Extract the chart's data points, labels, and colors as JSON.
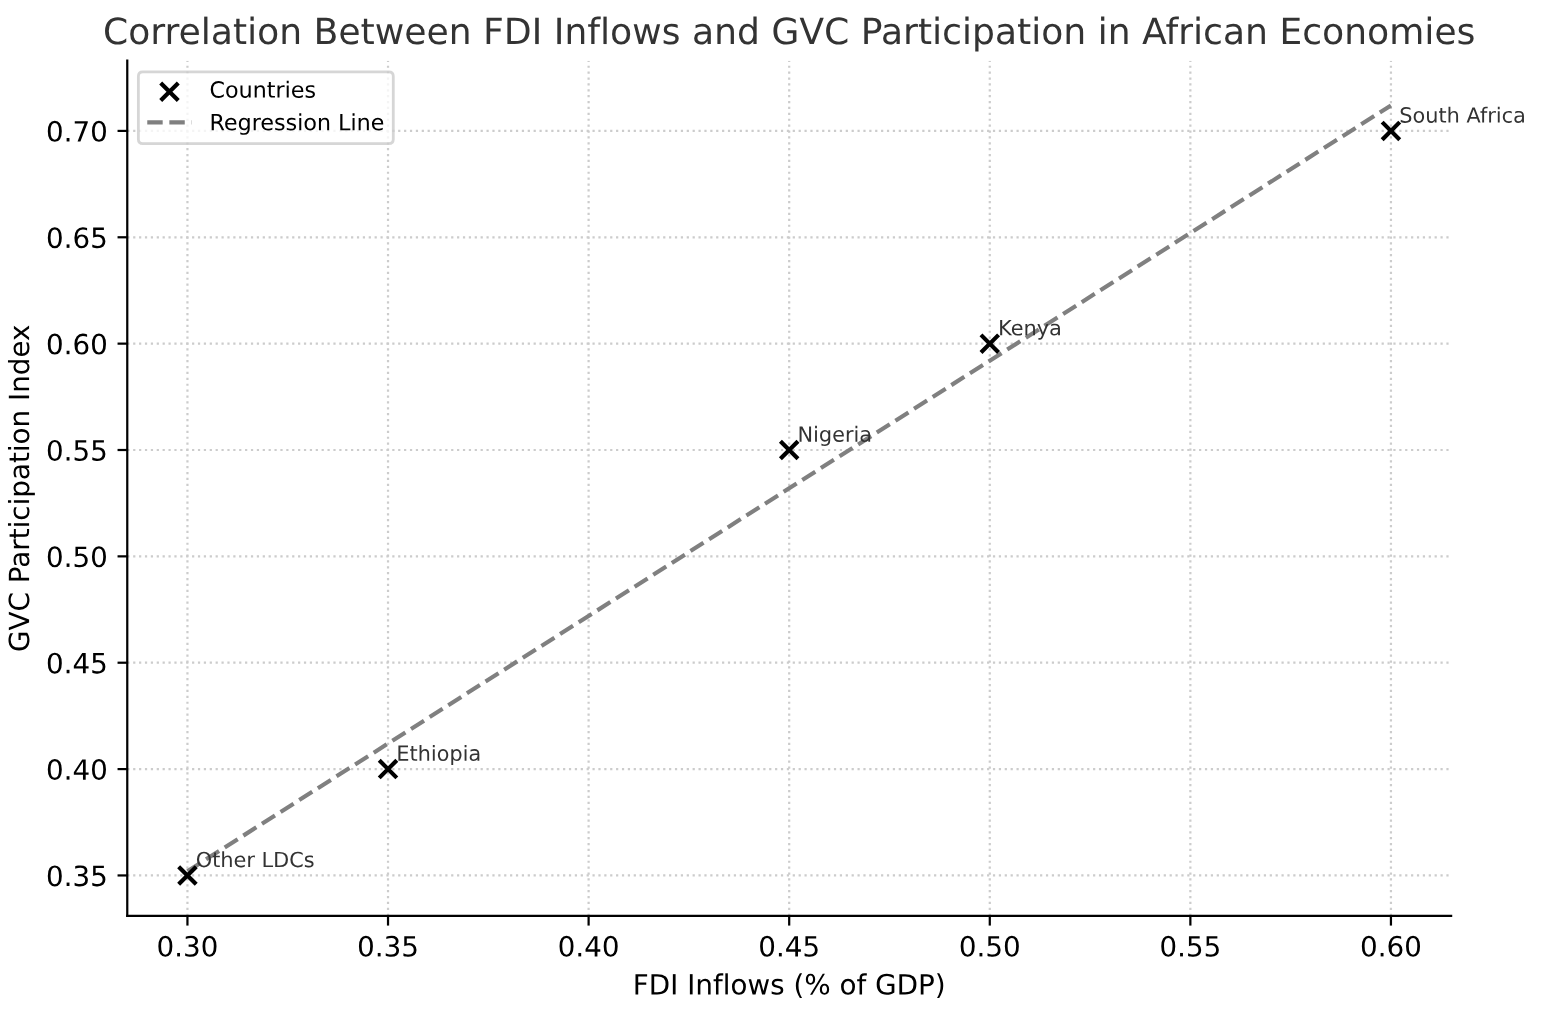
{
  "chart_data": {
    "type": "scatter",
    "title": "Correlation Between FDI Inflows and GVC Participation in African Economies",
    "xlabel": "FDI Inflows (% of GDP)",
    "ylabel": "GVC Participation Index",
    "series": [
      {
        "name": "Countries",
        "type": "scatter",
        "color": "#000000",
        "marker": "cross",
        "x": [
          0.3,
          0.35,
          0.45,
          0.5,
          0.6
        ],
        "values": [
          0.35,
          0.4,
          0.55,
          0.6,
          0.7
        ]
      },
      {
        "name": "Regression Line",
        "type": "line",
        "color": "#808080",
        "line_style": "dashed",
        "marker": "none",
        "x": [
          0.3,
          0.6
        ],
        "values": [
          0.352,
          0.712
        ]
      }
    ],
    "annotations": [
      {
        "text": "Other LDCs",
        "x": 0.3,
        "y": 0.35
      },
      {
        "text": "Ethiopia",
        "x": 0.35,
        "y": 0.4
      },
      {
        "text": "Nigeria",
        "x": 0.45,
        "y": 0.55
      },
      {
        "text": "Kenya",
        "x": 0.5,
        "y": 0.6
      },
      {
        "text": "South Africa",
        "x": 0.6,
        "y": 0.7
      }
    ],
    "xlim": [
      0.285,
      0.615
    ],
    "xticks": [
      {
        "value": 0.3,
        "label": "0.30"
      },
      0.35,
      {
        "value": 0.4,
        "label": "0.40"
      },
      0.45,
      {
        "value": 0.5,
        "label": "0.50"
      },
      0.55,
      {
        "value": 0.6,
        "label": "0.60"
      }
    ],
    "ylim": [
      0.331,
      0.733
    ],
    "yticks": [
      0.35,
      {
        "value": 0.4,
        "label": "0.40"
      },
      0.45,
      {
        "value": 0.5,
        "label": "0.50"
      },
      0.55,
      {
        "value": 0.6,
        "label": "0.60"
      },
      0.65,
      {
        "value": 0.7,
        "label": "0.70"
      }
    ],
    "grid": true,
    "legend": "top left"
  }
}
